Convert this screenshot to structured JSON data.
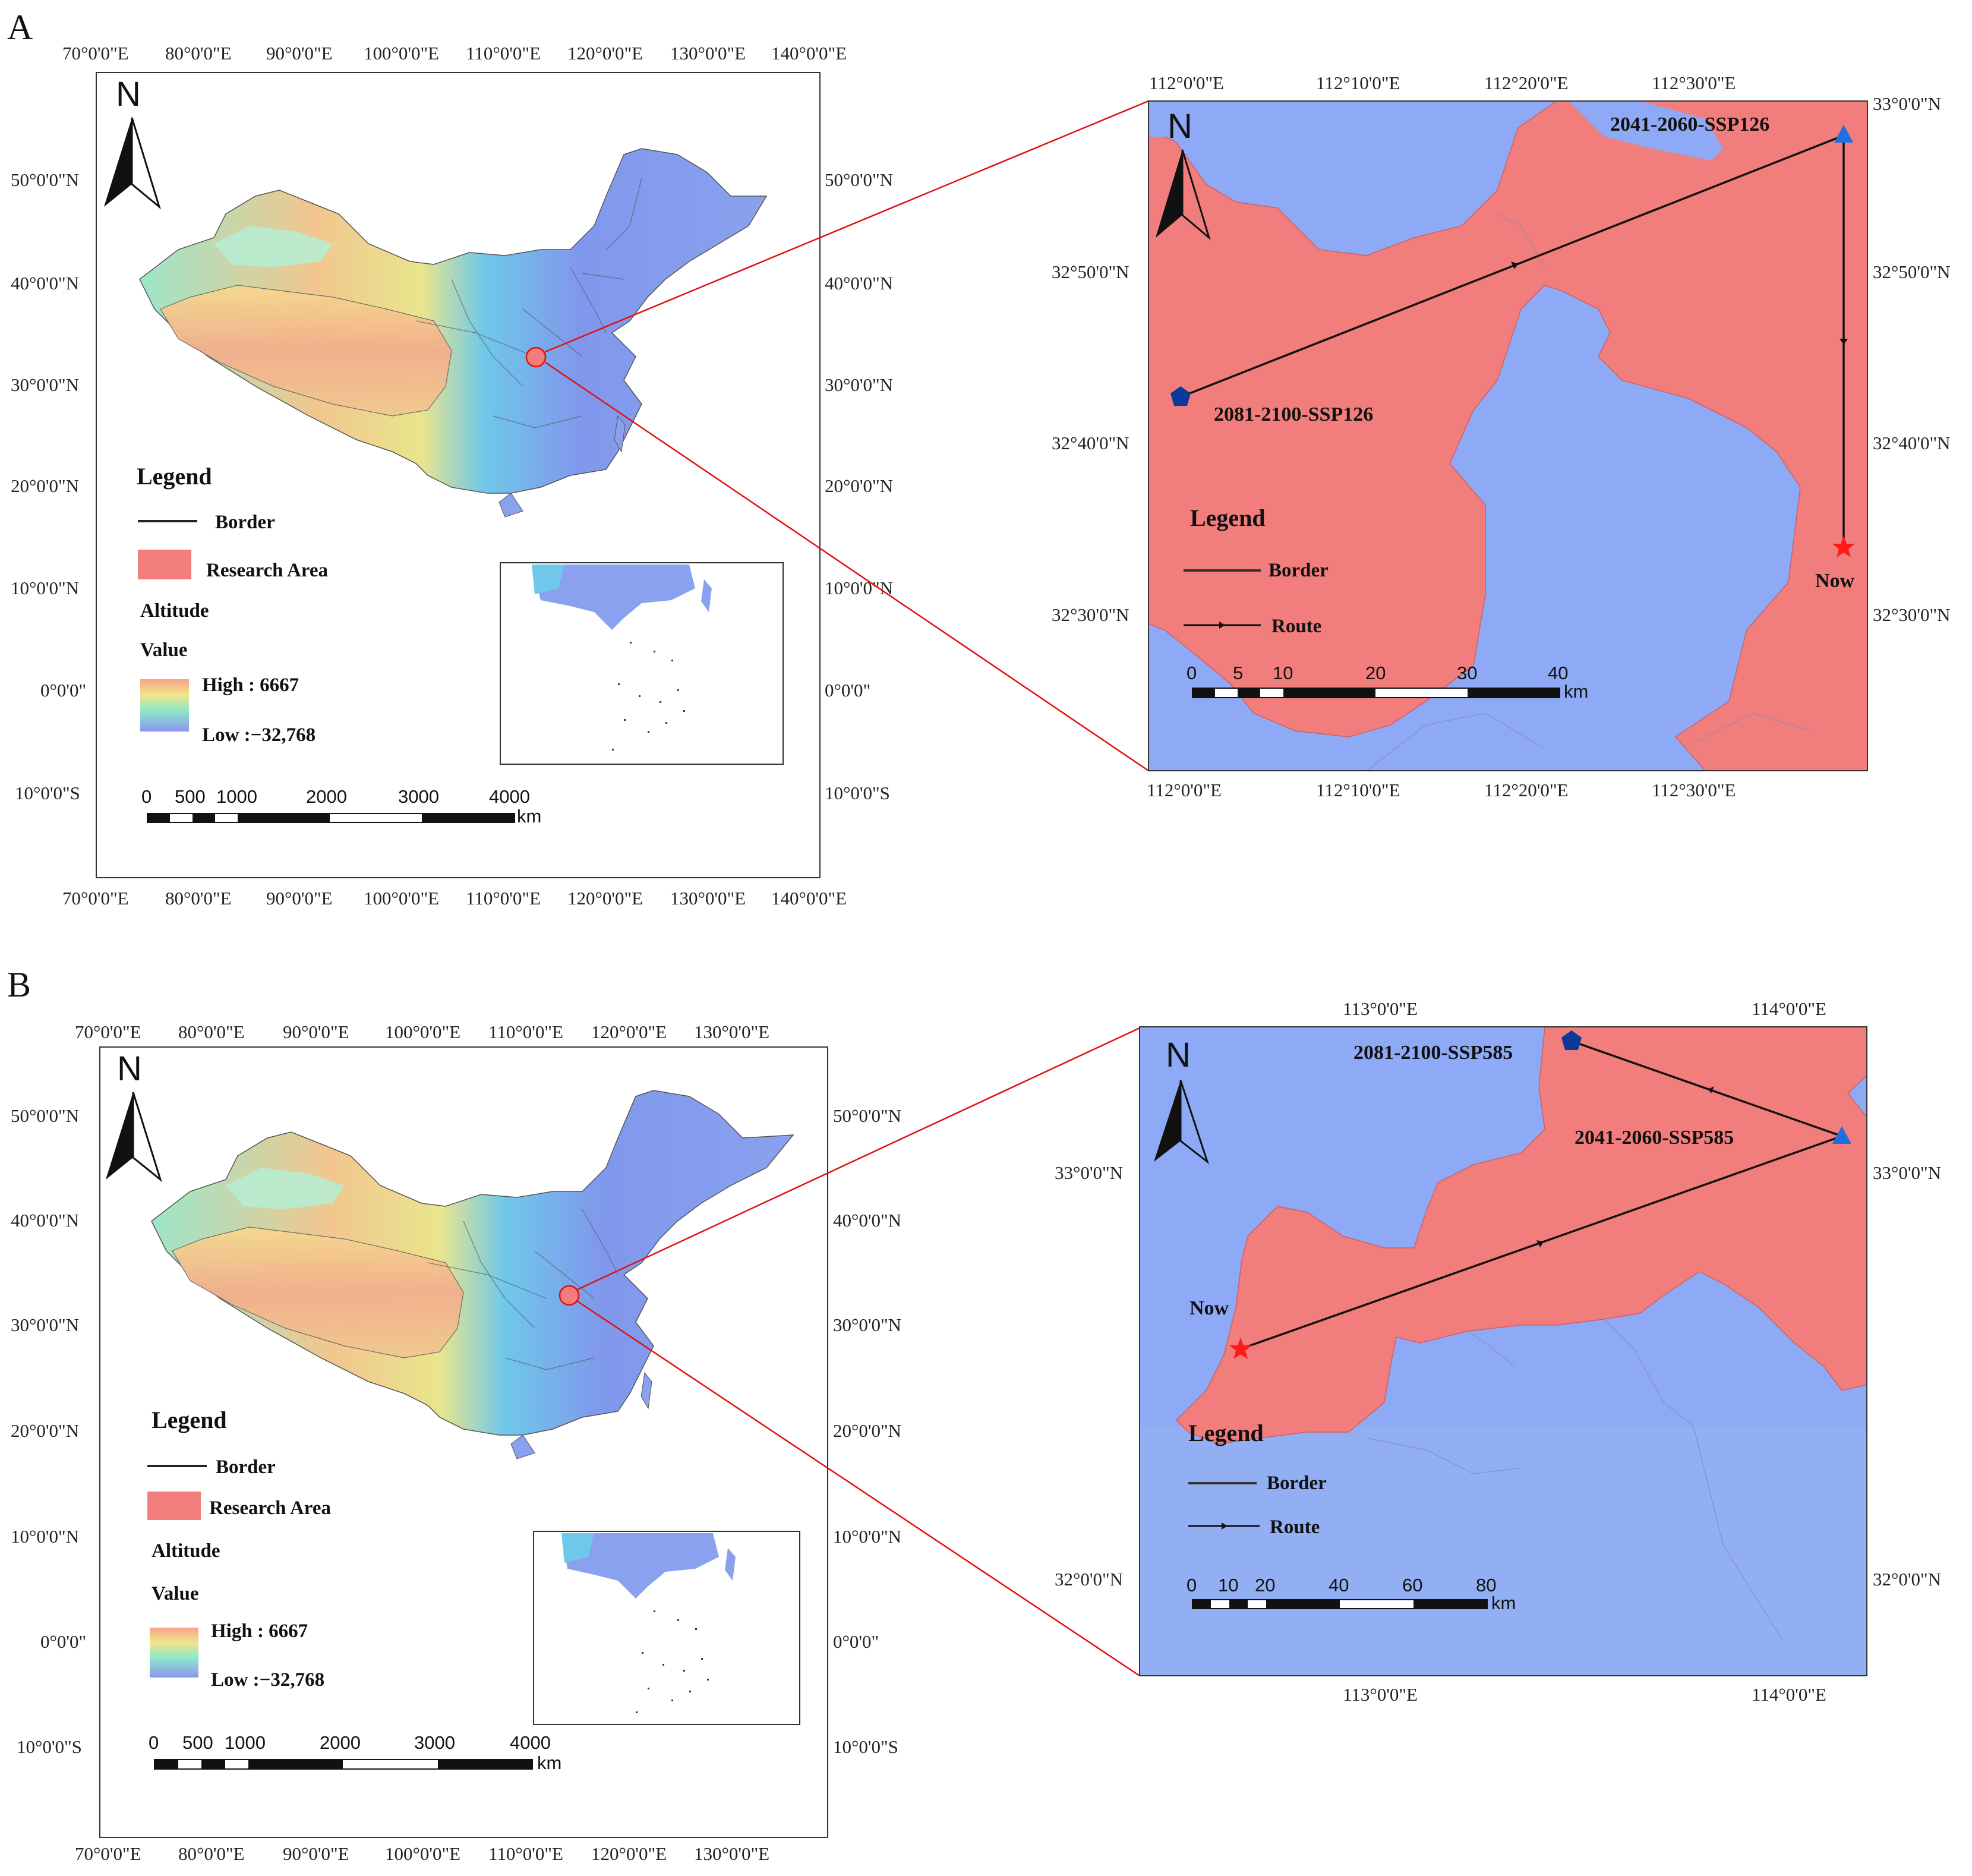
{
  "panels": [
    {
      "letter": "A",
      "overview": {
        "lon_top": [
          "70°0'0\"E",
          "80°0'0\"E",
          "90°0'0\"E",
          "100°0'0\"E",
          "110°0'0\"E",
          "120°0'0\"E",
          "130°0'0\"E",
          "140°0'0\"E"
        ],
        "lon_bottom": [
          "70°0'0\"E",
          "80°0'0\"E",
          "90°0'0\"E",
          "100°0'0\"E",
          "110°0'0\"E",
          "120°0'0\"E",
          "130°0'0\"E",
          "140°0'0\"E"
        ],
        "lat_left": [
          "50°0'0\"N",
          "40°0'0\"N",
          "30°0'0\"N",
          "20°0'0\"N",
          "10°0'0\"N",
          "0°0'0\"",
          "10°0'0\"S"
        ],
        "lat_right": [
          "50°0'0\"N",
          "40°0'0\"N",
          "30°0'0\"N",
          "20°0'0\"N",
          "10°0'0\"N",
          "0°0'0\"",
          "10°0'0\"S"
        ],
        "north": "N",
        "legend": {
          "title": "Legend",
          "border": "Border",
          "research_area": "Research Area",
          "altitude": "Altitude",
          "value": "Value",
          "high": "High : 6667",
          "low": "Low :−32,768"
        },
        "scale": {
          "ticks": [
            "0",
            "500",
            "1000",
            "2000",
            "3000",
            "4000"
          ],
          "unit": "km"
        }
      },
      "detail": {
        "lon_top": [
          "112°0'0\"E",
          "112°10'0\"E",
          "112°20'0\"E",
          "112°30'0\"E"
        ],
        "lon_bottom": [
          "112°0'0\"E",
          "112°10'0\"E",
          "112°20'0\"E",
          "112°30'0\"E"
        ],
        "lat_left": [
          "32°50'0\"N",
          "32°40'0\"N",
          "32°30'0\"N"
        ],
        "lat_right": [
          "33°0'0\"N",
          "32°50'0\"N",
          "32°40'0\"N",
          "32°30'0\"N"
        ],
        "north": "N",
        "legend": {
          "title": "Legend",
          "border": "Border",
          "route": "Route"
        },
        "scale": {
          "ticks": [
            "0",
            "5",
            "10",
            "20",
            "30",
            "40"
          ],
          "unit": "km"
        },
        "points": {
          "now": "Now",
          "mid": "2041-2060-SSP126",
          "end": "2081-2100-SSP126"
        }
      }
    },
    {
      "letter": "B",
      "overview": {
        "lon_top": [
          "70°0'0\"E",
          "80°0'0\"E",
          "90°0'0\"E",
          "100°0'0\"E",
          "110°0'0\"E",
          "120°0'0\"E",
          "130°0'0\"E"
        ],
        "lon_bottom": [
          "70°0'0\"E",
          "80°0'0\"E",
          "90°0'0\"E",
          "100°0'0\"E",
          "110°0'0\"E",
          "120°0'0\"E",
          "130°0'0\"E"
        ],
        "lat_left": [
          "50°0'0\"N",
          "40°0'0\"N",
          "30°0'0\"N",
          "20°0'0\"N",
          "10°0'0\"N",
          "0°0'0\"",
          "10°0'0\"S"
        ],
        "lat_right": [
          "50°0'0\"N",
          "40°0'0\"N",
          "30°0'0\"N",
          "20°0'0\"N",
          "10°0'0\"N",
          "0°0'0\"",
          "10°0'0\"S"
        ],
        "north": "N",
        "legend": {
          "title": "Legend",
          "border": "Border",
          "research_area": "Research Area",
          "altitude": "Altitude",
          "value": "Value",
          "high": "High : 6667",
          "low": "Low :−32,768"
        },
        "scale": {
          "ticks": [
            "0",
            "500",
            "1000",
            "2000",
            "3000",
            "4000"
          ],
          "unit": "km"
        }
      },
      "detail": {
        "lon_top": [
          "113°0'0\"E",
          "114°0'0\"E"
        ],
        "lon_bottom": [
          "113°0'0\"E",
          "114°0'0\"E"
        ],
        "lat_left": [
          "33°0'0\"N",
          "32°0'0\"N"
        ],
        "lat_right": [
          "33°0'0\"N",
          "32°0'0\"N"
        ],
        "north": "N",
        "legend": {
          "title": "Legend",
          "border": "Border",
          "route": "Route"
        },
        "scale": {
          "ticks": [
            "0",
            "10",
            "20",
            "40",
            "60",
            "80"
          ],
          "unit": "km"
        },
        "points": {
          "now": "Now",
          "mid": "2041-2060-SSP585",
          "end": "2081-2100-SSP585"
        }
      }
    }
  ],
  "colors": {
    "research_area": "#f27d7d",
    "water_blue": "#8ea9f5",
    "route": "#111111",
    "now_star": "#ff1a1a",
    "mid_triangle": "#1f6fe0",
    "end_pentagon": "#0d3a9a",
    "connector": "#e01010"
  }
}
